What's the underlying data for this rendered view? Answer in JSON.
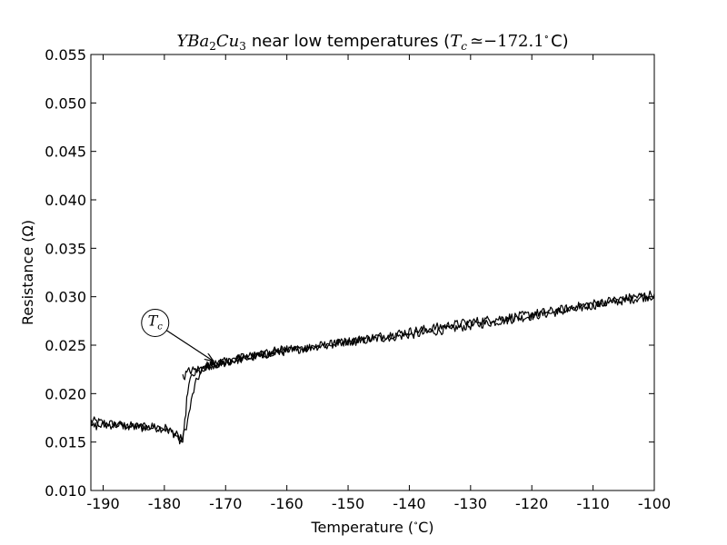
{
  "chart_data": {
    "type": "line",
    "title": "YBa2Cu3 near low temperatures (Tc ≃ −172.1° C)",
    "title_parts": {
      "formula_base": [
        "Y",
        "Ba",
        "2",
        "Cu",
        "3"
      ],
      "text": "near low temperatures (",
      "tc_symbol": "T",
      "tc_sub": "c",
      "approx": "≃",
      "value": "−172.1",
      "degree": "∘",
      "unit": "C)"
    },
    "xlabel": "Temperature (°C)",
    "xlabel_parts": {
      "text": "Temperature (",
      "degree": "∘",
      "unit": "C)"
    },
    "ylabel": "Resistance (Ω)",
    "xlim": [
      -192,
      -100
    ],
    "ylim": [
      0.01,
      0.055
    ],
    "xticks": [
      -190,
      -180,
      -170,
      -160,
      -150,
      -140,
      -130,
      -120,
      -110,
      -100
    ],
    "yticks": [
      "0.010",
      "0.015",
      "0.020",
      "0.025",
      "0.030",
      "0.035",
      "0.040",
      "0.045",
      "0.050",
      "0.055"
    ],
    "grid": false,
    "line_color": "#000000",
    "annotation": {
      "symbol": "T",
      "sub": "c",
      "text_at": [
        -181.5,
        0.0273
      ],
      "arrow_to": [
        -172.1,
        0.0234
      ]
    },
    "series": [
      {
        "x": [
          -192.0,
          -190.0,
          -188.0,
          -186.0,
          -184.0,
          -182.0,
          -180.0,
          -178.5,
          -178.0,
          -177.5,
          -177.0,
          -176.6,
          -176.2,
          -175.8,
          -175.4,
          -175.0,
          -174.6,
          -174.2,
          -173.8,
          -173.4,
          -173.0,
          -172.0,
          -170.0,
          -168.0,
          -166.0,
          -164.0,
          -162.0,
          -160.0,
          -157.0,
          -154.0,
          -150.0,
          -146.0,
          -142.0,
          -138.0,
          -134.0,
          -130.0,
          -126.0,
          -122.0,
          -118.0,
          -114.0,
          -110.0,
          -106.0,
          -103.0,
          -100.0
        ],
        "y": [
          0.0172,
          0.017,
          0.0168,
          0.0167,
          0.0166,
          0.0165,
          0.0164,
          0.016,
          0.0156,
          0.0153,
          0.0155,
          0.0162,
          0.0172,
          0.0185,
          0.0198,
          0.0208,
          0.0215,
          0.022,
          0.0224,
          0.0227,
          0.0229,
          0.0231,
          0.0233,
          0.0236,
          0.0238,
          0.024,
          0.0243,
          0.0245,
          0.0247,
          0.025,
          0.0253,
          0.0256,
          0.0259,
          0.0262,
          0.0266,
          0.027,
          0.0274,
          0.0278,
          0.0282,
          0.0286,
          0.0291,
          0.0295,
          0.0298,
          0.0301
        ]
      },
      {
        "x": [
          -192.0,
          -190.0,
          -188.0,
          -186.0,
          -184.0,
          -182.0,
          -180.0,
          -179.0,
          -178.0,
          -177.5,
          -177.0,
          -176.8,
          -176.5,
          -176.2,
          -175.8,
          -175.4,
          -175.0,
          -174.5,
          -174.0,
          -173.0,
          -172.0,
          -170.0,
          -168.0,
          -166.0,
          -163.0,
          -160.0,
          -157.0,
          -154.0,
          -150.0,
          -146.0,
          -142.0,
          -138.0,
          -134.0,
          -130.0,
          -126.0,
          -122.0,
          -118.0,
          -114.0,
          -110.0,
          -106.0,
          -103.0,
          -100.0
        ],
        "y": [
          0.0166,
          0.0167,
          0.0168,
          0.0166,
          0.0165,
          0.0166,
          0.0165,
          0.0161,
          0.0157,
          0.0151,
          0.015,
          0.0158,
          0.0182,
          0.0203,
          0.0213,
          0.0218,
          0.0221,
          0.0222,
          0.0223,
          0.0226,
          0.0229,
          0.0232,
          0.0235,
          0.0237,
          0.0241,
          0.0244,
          0.0247,
          0.025,
          0.0254,
          0.0258,
          0.0262,
          0.0266,
          0.027,
          0.0274,
          0.0277,
          0.028,
          0.0284,
          0.0288,
          0.0293,
          0.0297,
          0.03,
          0.0303
        ]
      },
      {
        "x": [
          -177.0,
          -176.5,
          -176.0,
          -175.5,
          -175.0,
          -174.5,
          -174.0,
          -173.5,
          -173.0,
          -172.0,
          -171.0,
          -170.0,
          -168.0,
          -166.0,
          -164.0,
          -162.0,
          -160.0
        ],
        "y": [
          0.0216,
          0.022,
          0.0223,
          0.0224,
          0.0224,
          0.0225,
          0.0226,
          0.0227,
          0.0228,
          0.023,
          0.0231,
          0.0233,
          0.0236,
          0.0239,
          0.0241,
          0.0244,
          0.0246
        ]
      }
    ]
  }
}
